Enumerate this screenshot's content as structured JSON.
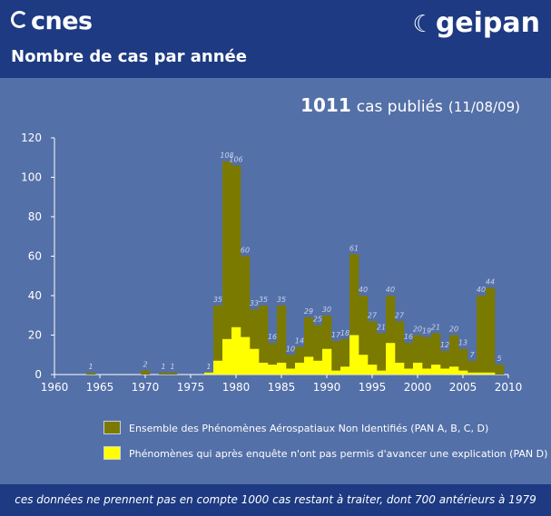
{
  "header": {
    "logo_left": "cnes",
    "logo_right": "geipan",
    "title": "Nombre de cas par année"
  },
  "summary": {
    "count": "1011",
    "label": "cas publiés",
    "date": "(11/08/09)"
  },
  "legend": {
    "total": "Ensemble des Phénomènes Aérospatiaux Non Identifiés (PAN A, B, C, D)",
    "pan_d": "Phénomènes qui après enquête n'ont pas permis d'avancer une explication (PAN D)"
  },
  "footer": "ces données ne prennent pas en compte 1000 cas restant à traiter, dont 700 antérieurs à 1979",
  "chart_data": {
    "type": "bar",
    "xlim": [
      1960,
      2010
    ],
    "ylim": [
      0,
      120
    ],
    "xticks": [
      1960,
      1965,
      1970,
      1975,
      1980,
      1985,
      1990,
      1995,
      2000,
      2005,
      2010
    ],
    "yticks": [
      0,
      20,
      40,
      60,
      80,
      100,
      120
    ],
    "x": [
      1964,
      1970,
      1972,
      1973,
      1977,
      1978,
      1979,
      1980,
      1981,
      1982,
      1983,
      1984,
      1985,
      1986,
      1987,
      1988,
      1989,
      1990,
      1991,
      1992,
      1993,
      1994,
      1995,
      1996,
      1997,
      1998,
      1999,
      2000,
      2001,
      2002,
      2003,
      2004,
      2005,
      2006,
      2007,
      2008,
      2009
    ],
    "series": [
      {
        "name": "Ensemble des Phénomènes Aérospatiaux Non Identifiés (PAN A, B, C, D)",
        "color": "#7a7a00",
        "values": [
          1,
          2,
          1,
          1,
          1,
          35,
          108,
          106,
          60,
          33,
          35,
          16,
          35,
          10,
          14,
          29,
          25,
          30,
          17,
          18,
          61,
          40,
          27,
          21,
          40,
          27,
          16,
          20,
          19,
          21,
          12,
          20,
          13,
          7,
          40,
          44,
          5
        ],
        "labels": [
          "1",
          "2",
          "1",
          "1",
          "1",
          "35",
          "108",
          "106",
          "60",
          "33",
          "35",
          "16",
          "35",
          "10",
          "14",
          "29",
          "25",
          "30",
          "17",
          "18",
          "61",
          "40",
          "27",
          "21",
          "40",
          "27",
          "16",
          "20",
          "19",
          "21",
          "12",
          "20",
          "13",
          "7",
          "40",
          "44",
          "5"
        ]
      },
      {
        "name": "Phénomènes qui après enquête n'ont pas permis d'avancer une explication (PAN D)",
        "color": "#ffff00",
        "values": [
          0,
          0,
          0,
          0,
          1,
          7,
          18,
          24,
          19,
          13,
          6,
          5,
          6,
          3,
          6,
          9,
          7,
          13,
          2,
          4,
          20,
          10,
          5,
          2,
          16,
          6,
          3,
          6,
          3,
          5,
          3,
          4,
          2,
          1,
          1,
          1,
          0
        ]
      }
    ]
  }
}
